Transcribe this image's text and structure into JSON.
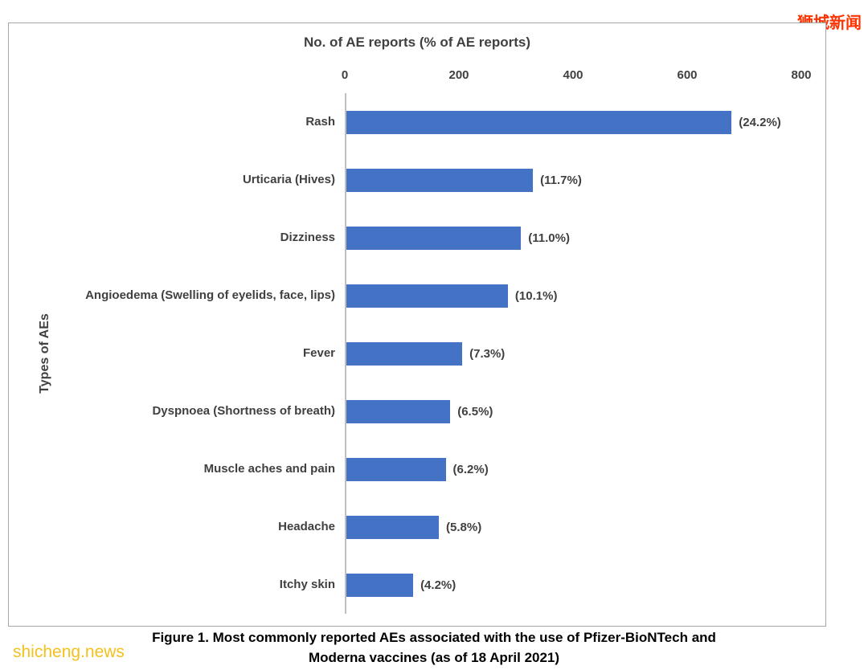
{
  "watermark_top": "狮城新闻",
  "watermark_bottom": "shicheng.news",
  "chart_data": {
    "type": "bar",
    "orientation": "horizontal",
    "title": "No. of AE reports (% of AE reports)",
    "ylabel": "Types of AEs",
    "xlabel": "",
    "xlim": [
      0,
      800
    ],
    "x_ticks": [
      0,
      200,
      400,
      600,
      800
    ],
    "grid": false,
    "legend": false,
    "bar_color": "#4472c4",
    "categories": [
      "Rash",
      "Urticaria (Hives)",
      "Dizziness",
      "Angioedema (Swelling of eyelids, face, lips)",
      "Fever",
      "Dyspnoea (Shortness of breath)",
      "Muscle aches and pain",
      "Headache",
      "Itchy skin"
    ],
    "values": [
      675,
      327,
      306,
      283,
      203,
      182,
      174,
      162,
      117
    ],
    "labels": [
      "(24.2%)",
      "(11.7%)",
      "(11.0%)",
      "(10.1%)",
      "(7.3%)",
      "(6.5%)",
      "(6.2%)",
      "(5.8%)",
      "(4.2%)"
    ]
  },
  "caption": {
    "line1": "Figure 1. Most commonly reported AEs associated with the use of Pfizer-BioNTech and",
    "line2": "Moderna vaccines (as of 18 April 2021)"
  }
}
